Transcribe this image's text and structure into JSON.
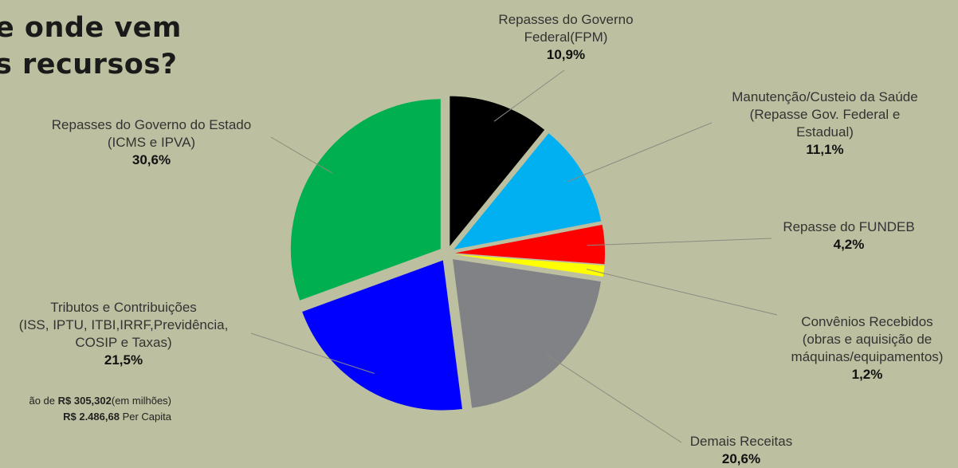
{
  "title": {
    "line1": "e onde vem",
    "line2": "s recursos?"
  },
  "chart_data": {
    "type": "pie",
    "slices": [
      {
        "label_lines": [
          "Repasses do Governo",
          "Federal(FPM)"
        ],
        "percent_label": "10,9%",
        "value": 10.9,
        "color": "#000000"
      },
      {
        "label_lines": [
          "Manutenção/Custeio da Saúde",
          "(Repasse Gov. Federal e",
          "Estadual)"
        ],
        "percent_label": "11,1%",
        "value": 11.1,
        "color": "#00b0f0"
      },
      {
        "label_lines": [
          "Repasse do FUNDEB"
        ],
        "percent_label": "4,2%",
        "value": 4.2,
        "color": "#ff0000"
      },
      {
        "label_lines": [
          "Convênios Recebidos",
          "(obras e aquisição de",
          "máquinas/equipamentos)"
        ],
        "percent_label": "1,2%",
        "value": 1.2,
        "color": "#ffff00"
      },
      {
        "label_lines": [
          "Demais Receitas"
        ],
        "percent_label": "20,6%",
        "value": 20.6,
        "color": "#808285"
      },
      {
        "label_lines": [
          "Tributos e Contribuições",
          "(ISS, IPTU, ITBI,IRRF,Previdência,",
          "COSIP e Taxas)"
        ],
        "percent_label": "21,5%",
        "value": 21.5,
        "color": "#0000ff"
      },
      {
        "label_lines": [
          "Repasses do Governo do Estado",
          "(ICMS e IPVA)"
        ],
        "percent_label": "30,6%",
        "value": 30.6,
        "color": "#00b050"
      }
    ]
  },
  "footer": {
    "line1_prefix": "ão de ",
    "line1_amount": "R$ 305,302",
    "line1_suffix": "(em milhões)",
    "line2_amount": "R$ 2.486,68",
    "line2_suffix": " Per Capita"
  },
  "colors": {
    "background": "#bdc0a0",
    "leader_line": "#8a8a80"
  }
}
